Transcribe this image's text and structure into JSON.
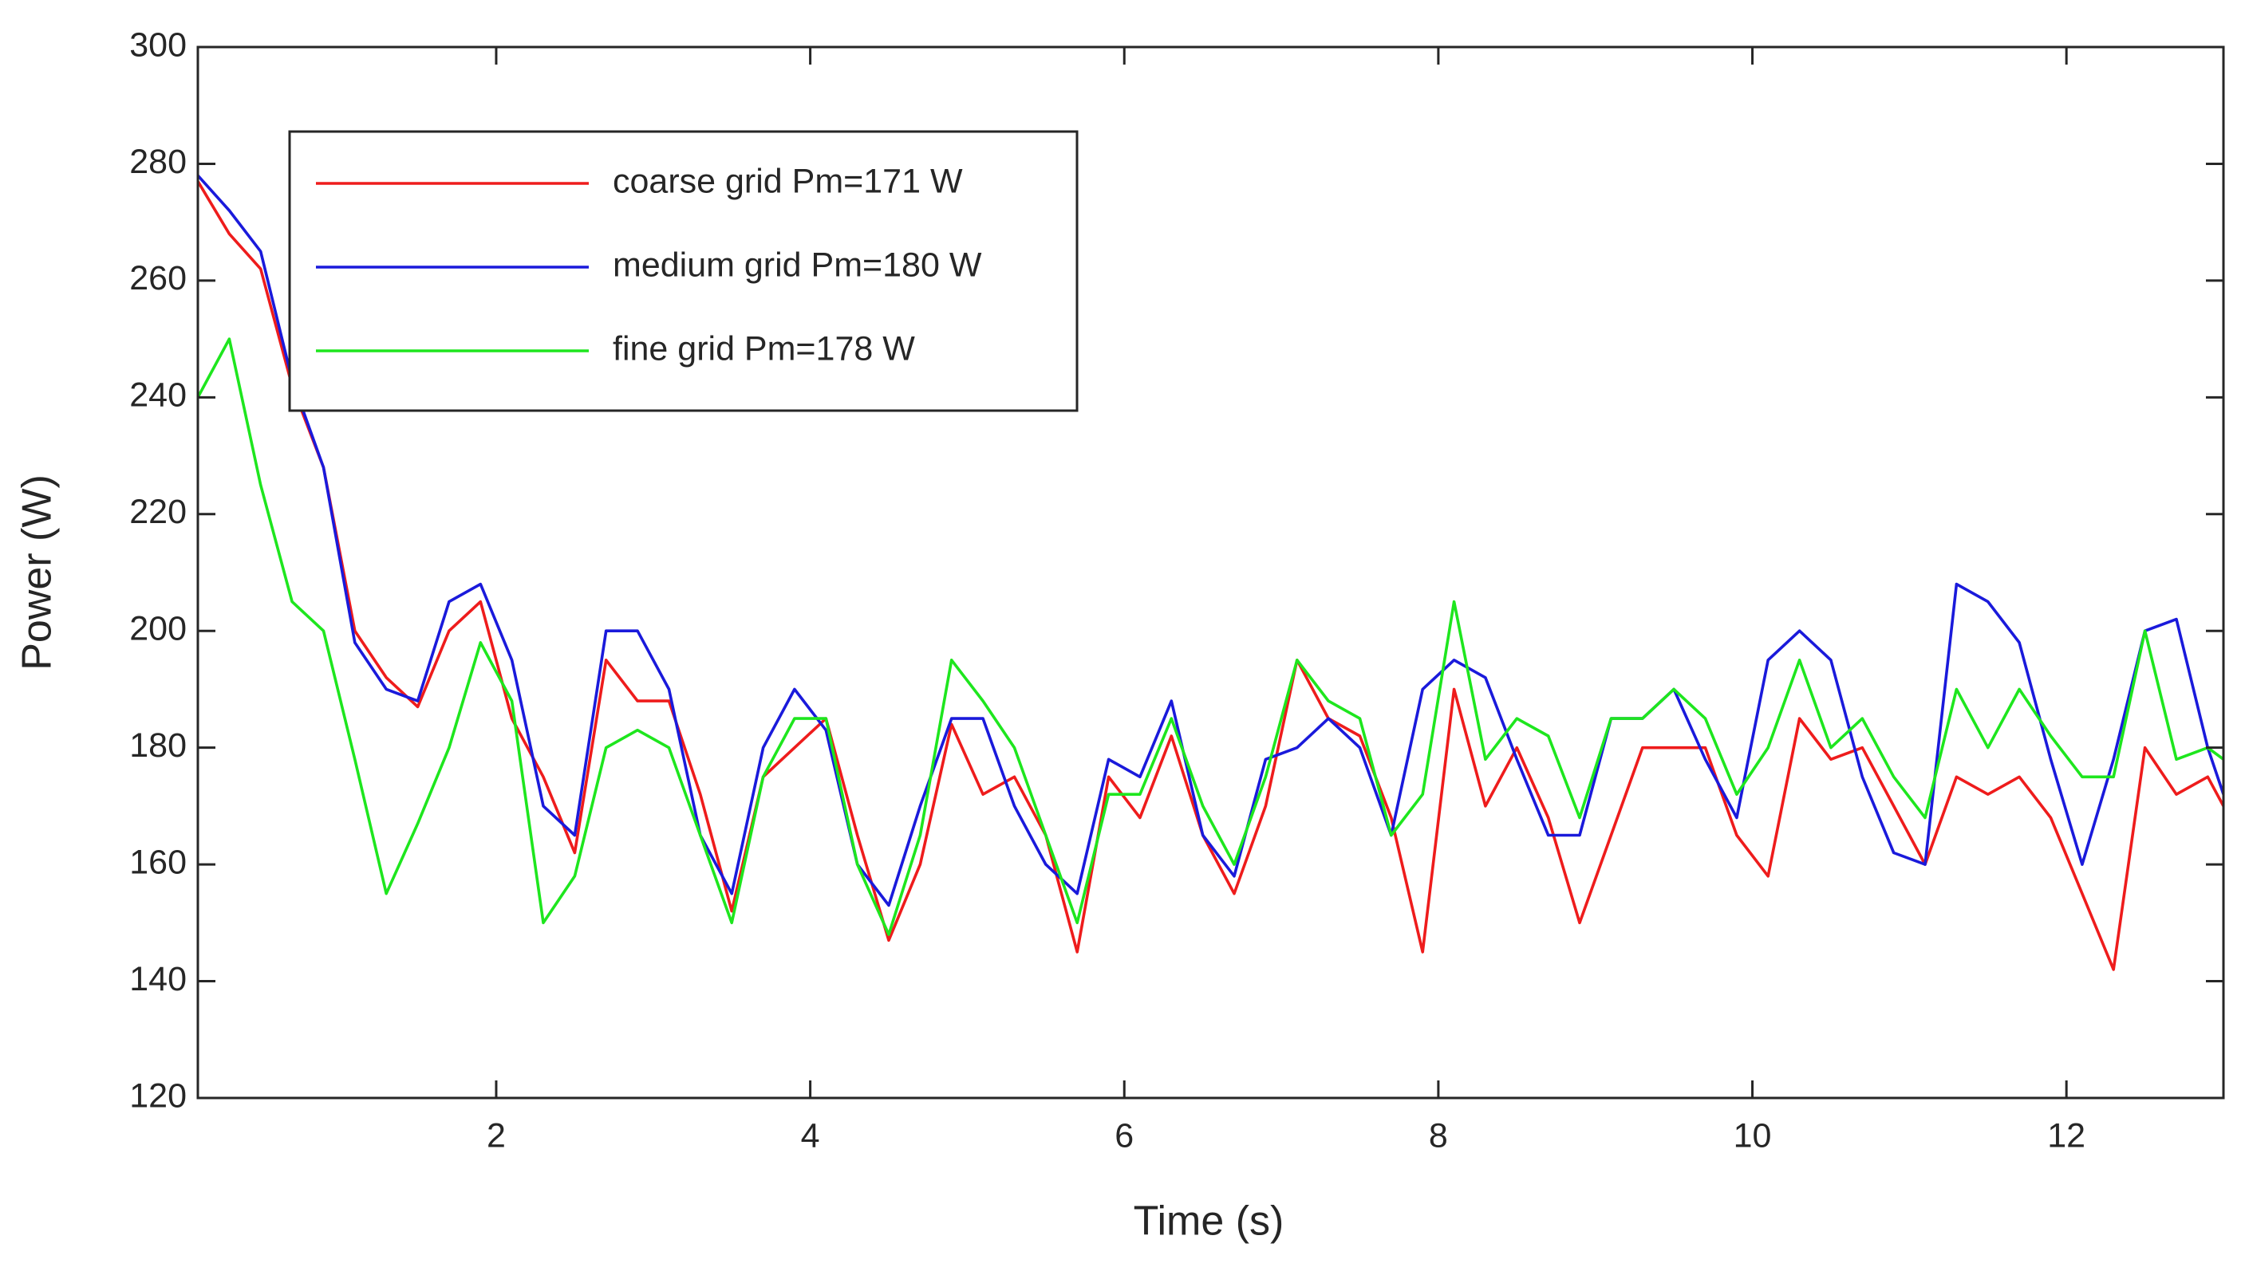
{
  "chart_data": {
    "type": "line",
    "xlabel": "Time (s)",
    "ylabel": "Power (W)",
    "x": [
      0.1,
      0.3,
      0.5,
      0.7,
      0.9,
      1.1,
      1.3,
      1.5,
      1.7,
      1.9,
      2.1,
      2.3,
      2.5,
      2.7,
      2.9,
      3.1,
      3.3,
      3.5,
      3.7,
      3.9,
      4.1,
      4.3,
      4.5,
      4.7,
      4.9,
      5.1,
      5.3,
      5.5,
      5.7,
      5.9,
      6.1,
      6.3,
      6.5,
      6.7,
      6.9,
      7.1,
      7.3,
      7.5,
      7.7,
      7.9,
      8.1,
      8.3,
      8.5,
      8.7,
      8.9,
      9.1,
      9.3,
      9.5,
      9.7,
      9.9,
      10.1,
      10.3,
      10.5,
      10.7,
      10.9,
      11.1,
      11.3,
      11.5,
      11.7,
      11.9,
      12.1,
      12.3,
      12.5,
      12.7,
      12.9,
      13.0
    ],
    "series": [
      {
        "name": "coarse grid Pm=171 W",
        "color": "#ee1c1c",
        "values": [
          277,
          268,
          262,
          242,
          228,
          200,
          192,
          187,
          200,
          205,
          185,
          175,
          162,
          195,
          188,
          188,
          172,
          152,
          175,
          180,
          185,
          165,
          147,
          160,
          184,
          172,
          175,
          165,
          145,
          175,
          168,
          182,
          165,
          155,
          170,
          195,
          185,
          182,
          168,
          145,
          190,
          170,
          180,
          168,
          150,
          165,
          180,
          180,
          180,
          165,
          158,
          185,
          178,
          180,
          170,
          160,
          175,
          172,
          175,
          168,
          155,
          142,
          180,
          172,
          175,
          170
        ]
      },
      {
        "name": "medium grid Pm=180 W",
        "color": "#1a1adb",
        "values": [
          278,
          272,
          265,
          243,
          228,
          198,
          190,
          188,
          205,
          208,
          195,
          170,
          165,
          200,
          200,
          190,
          165,
          155,
          180,
          190,
          183,
          160,
          153,
          170,
          185,
          185,
          170,
          160,
          155,
          178,
          175,
          188,
          165,
          158,
          178,
          180,
          185,
          180,
          165,
          190,
          195,
          192,
          178,
          165,
          165,
          185,
          185,
          190,
          178,
          168,
          195,
          200,
          195,
          175,
          162,
          160,
          208,
          205,
          198,
          178,
          160,
          178,
          200,
          202,
          180,
          172
        ]
      },
      {
        "name": "fine grid   Pm=178 W",
        "color": "#1ee61e",
        "values": [
          240,
          250,
          225,
          205,
          200,
          178,
          155,
          167,
          180,
          198,
          188,
          150,
          158,
          180,
          183,
          180,
          165,
          150,
          175,
          185,
          185,
          160,
          148,
          165,
          195,
          188,
          180,
          165,
          150,
          172,
          172,
          185,
          170,
          160,
          175,
          195,
          188,
          185,
          165,
          172,
          205,
          178,
          185,
          182,
          168,
          185,
          185,
          190,
          185,
          172,
          180,
          195,
          180,
          185,
          175,
          168,
          190,
          180,
          190,
          182,
          175,
          175,
          200,
          178,
          180,
          178
        ]
      }
    ],
    "xlim": [
      0.1,
      13
    ],
    "xticks": [
      2,
      4,
      6,
      8,
      10,
      12
    ],
    "ylim": [
      120,
      300
    ],
    "yticks": [
      120,
      140,
      160,
      180,
      200,
      220,
      240,
      260,
      280,
      300
    ],
    "grid": false,
    "legend": "upper left"
  }
}
